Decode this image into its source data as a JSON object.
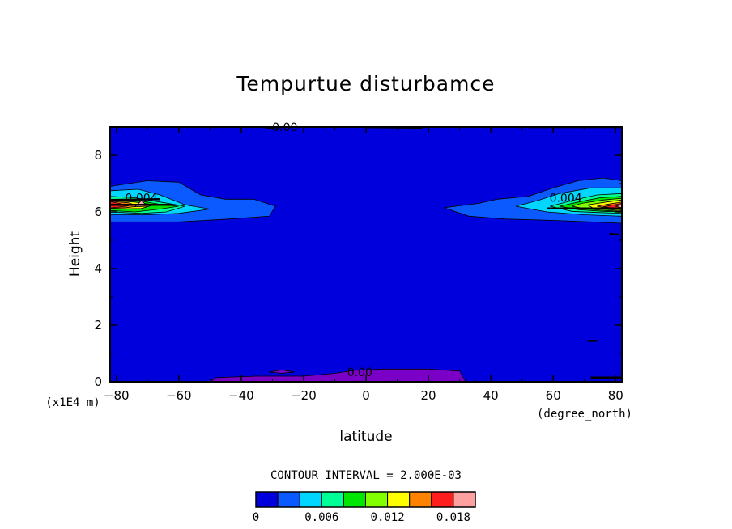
{
  "chart_data": {
    "type": "contour",
    "title": "Tempurtue disturbamce",
    "xlabel": "latitude",
    "x_units": "(degree_north)",
    "ylabel": "Height",
    "y_units": "(x1E4 m)",
    "xlim": [
      -82,
      82
    ],
    "ylim": [
      0,
      9
    ],
    "x_ticks": [
      "−80",
      "−60",
      "−40",
      "−20",
      "0",
      "20",
      "40",
      "60",
      "80"
    ],
    "x_tick_values": [
      -80,
      -60,
      -40,
      -20,
      0,
      20,
      40,
      60,
      80
    ],
    "y_ticks": [
      "0",
      "2",
      "4",
      "6",
      "8"
    ],
    "y_tick_values": [
      0,
      2,
      4,
      6,
      8
    ],
    "contour_interval_text": "CONTOUR INTERVAL = 2.000E-03",
    "contour_interval": 0.002,
    "levels": [
      0,
      0.002,
      0.004,
      0.006,
      0.008,
      0.01,
      0.012,
      0.014,
      0.016,
      0.018
    ],
    "colorbar_colors": [
      "#0000dd",
      "#0a5aff",
      "#00d6ff",
      "#00ff96",
      "#00e600",
      "#82ff00",
      "#ffff00",
      "#ff8200",
      "#ff1e1e",
      "#ffa0a0"
    ],
    "colorbar_labels": [
      {
        "text": "0",
        "level": 0
      },
      {
        "text": "0.006",
        "level": 0.006
      },
      {
        "text": "0.012",
        "level": 0.012
      },
      {
        "text": "0.018",
        "level": 0.018
      }
    ],
    "background_color": "#0000dd",
    "negative_region_color": "#7a00c8",
    "contour_labels": [
      {
        "text": "0.004",
        "x": -72,
        "y": 6.5
      },
      {
        "text": "0.004",
        "x": 64,
        "y": 6.5
      },
      {
        "text": "0.00",
        "x": -26,
        "y": 9.0
      },
      {
        "text": "0.00",
        "x": -2,
        "y": 0.35
      }
    ],
    "regions": [
      {
        "color": "#0a5aff",
        "points": [
          [
            -82,
            6.2
          ],
          [
            -82,
            6.9
          ],
          [
            -70,
            7.1
          ],
          [
            -60,
            7.05
          ],
          [
            -53,
            6.6
          ],
          [
            -45,
            6.45
          ],
          [
            -36,
            6.45
          ],
          [
            -29,
            6.2
          ],
          [
            -31,
            5.85
          ],
          [
            -44,
            5.75
          ],
          [
            -60,
            5.65
          ],
          [
            -82,
            5.65
          ]
        ]
      },
      {
        "color": "#00d6ff",
        "points": [
          [
            -82,
            5.9
          ],
          [
            -82,
            6.75
          ],
          [
            -73,
            6.8
          ],
          [
            -66,
            6.6
          ],
          [
            -58,
            6.25
          ],
          [
            -50,
            6.1
          ],
          [
            -60,
            5.95
          ],
          [
            -70,
            5.9
          ]
        ]
      },
      {
        "color": "#00ff96",
        "points": [
          [
            -82,
            6.0
          ],
          [
            -82,
            6.55
          ],
          [
            -74,
            6.5
          ],
          [
            -66,
            6.35
          ],
          [
            -58,
            6.2
          ],
          [
            -64,
            6.0
          ],
          [
            -72,
            5.95
          ]
        ]
      },
      {
        "color": "#00e600",
        "points": [
          [
            -82,
            6.05
          ],
          [
            -82,
            6.45
          ],
          [
            -73,
            6.4
          ],
          [
            -65,
            6.25
          ],
          [
            -60,
            6.2
          ],
          [
            -66,
            6.1
          ],
          [
            -74,
            6.0
          ]
        ]
      },
      {
        "color": "#ffff00",
        "points": [
          [
            -82,
            6.1
          ],
          [
            -82,
            6.4
          ],
          [
            -74,
            6.35
          ],
          [
            -68,
            6.25
          ],
          [
            -72,
            6.12
          ]
        ]
      },
      {
        "color": "#ff8200",
        "points": [
          [
            -82,
            6.12
          ],
          [
            -82,
            6.38
          ],
          [
            -76,
            6.32
          ],
          [
            -73,
            6.2
          ],
          [
            -77,
            6.15
          ]
        ]
      },
      {
        "color": "#ff1e1e",
        "points": [
          [
            -82,
            6.14
          ],
          [
            -82,
            6.36
          ],
          [
            -79,
            6.3
          ],
          [
            -76,
            6.22
          ],
          [
            -79,
            6.17
          ]
        ]
      },
      {
        "color": "#ffa0a0",
        "points": [
          [
            -74,
            6.18
          ],
          [
            -72,
            6.4
          ],
          [
            -70,
            6.2
          ]
        ]
      },
      {
        "color": "#0a5aff",
        "points": [
          [
            82,
            5.6
          ],
          [
            82,
            7.1
          ],
          [
            76,
            7.2
          ],
          [
            68,
            7.1
          ],
          [
            60,
            6.85
          ],
          [
            52,
            6.55
          ],
          [
            42,
            6.45
          ],
          [
            36,
            6.3
          ],
          [
            25,
            6.15
          ],
          [
            33,
            5.85
          ],
          [
            45,
            5.75
          ],
          [
            60,
            5.7
          ],
          [
            72,
            5.65
          ]
        ]
      },
      {
        "color": "#00d6ff",
        "points": [
          [
            82,
            5.85
          ],
          [
            82,
            6.85
          ],
          [
            72,
            6.85
          ],
          [
            62,
            6.65
          ],
          [
            55,
            6.4
          ],
          [
            48,
            6.2
          ],
          [
            58,
            6.0
          ],
          [
            70,
            5.9
          ]
        ]
      },
      {
        "color": "#00ff96",
        "points": [
          [
            82,
            5.95
          ],
          [
            82,
            6.65
          ],
          [
            74,
            6.6
          ],
          [
            66,
            6.4
          ],
          [
            59,
            6.2
          ],
          [
            66,
            6.02
          ],
          [
            74,
            5.98
          ]
        ]
      },
      {
        "color": "#00e600",
        "points": [
          [
            82,
            6.0
          ],
          [
            82,
            6.55
          ],
          [
            75,
            6.5
          ],
          [
            68,
            6.35
          ],
          [
            62,
            6.2
          ],
          [
            68,
            6.08
          ],
          [
            76,
            6.02
          ]
        ]
      },
      {
        "color": "#82ff00",
        "points": [
          [
            82,
            6.02
          ],
          [
            82,
            6.48
          ],
          [
            76,
            6.42
          ],
          [
            69,
            6.3
          ],
          [
            66,
            6.2
          ],
          [
            71,
            6.1
          ],
          [
            77,
            6.05
          ]
        ]
      },
      {
        "color": "#ffff00",
        "points": [
          [
            82,
            6.05
          ],
          [
            82,
            6.42
          ],
          [
            77,
            6.35
          ],
          [
            71,
            6.25
          ],
          [
            73,
            6.12
          ],
          [
            78,
            6.08
          ]
        ]
      },
      {
        "color": "#ff8200",
        "points": [
          [
            82,
            6.08
          ],
          [
            82,
            6.35
          ],
          [
            78,
            6.28
          ],
          [
            74,
            6.2
          ],
          [
            78,
            6.12
          ]
        ]
      },
      {
        "color": "#ff1e1e",
        "points": [
          [
            82,
            6.1
          ],
          [
            82,
            6.3
          ],
          [
            79,
            6.24
          ],
          [
            76,
            6.18
          ],
          [
            79,
            6.14
          ]
        ]
      },
      {
        "color": "#ffa0a0",
        "points": [
          [
            82,
            6.14
          ],
          [
            82,
            6.26
          ],
          [
            80,
            6.2
          ]
        ]
      },
      {
        "color": "#7a00c8",
        "points": [
          [
            -50,
            0.0
          ],
          [
            -48,
            0.15
          ],
          [
            -35,
            0.2
          ],
          [
            -20,
            0.2
          ],
          [
            -10,
            0.3
          ],
          [
            -4,
            0.4
          ],
          [
            5,
            0.45
          ],
          [
            20,
            0.45
          ],
          [
            30,
            0.38
          ],
          [
            32,
            0.0
          ]
        ]
      },
      {
        "color": "#7a00c8",
        "points": [
          [
            -31,
            0.35
          ],
          [
            -27,
            0.42
          ],
          [
            -23,
            0.35
          ],
          [
            -27,
            0.3
          ]
        ]
      }
    ],
    "zero_lines": [
      [
        [
          -82,
          6.25
        ],
        [
          -62,
          6.25
        ]
      ],
      [
        [
          -82,
          6.42
        ],
        [
          -66,
          6.45
        ]
      ],
      [
        [
          58,
          6.12
        ],
        [
          82,
          6.12
        ]
      ],
      [
        [
          -32,
          8.98
        ],
        [
          -27,
          9.0
        ]
      ],
      [
        [
          0,
          9.0
        ],
        [
          18,
          8.98
        ]
      ],
      [
        [
          52,
          9.0
        ],
        [
          82,
          9.0
        ]
      ],
      [
        [
          81,
          5.2
        ],
        [
          78,
          5.22
        ]
      ],
      [
        [
          71,
          1.45
        ],
        [
          74,
          1.45
        ]
      ],
      [
        [
          72,
          0.15
        ],
        [
          82,
          0.15
        ]
      ]
    ]
  }
}
